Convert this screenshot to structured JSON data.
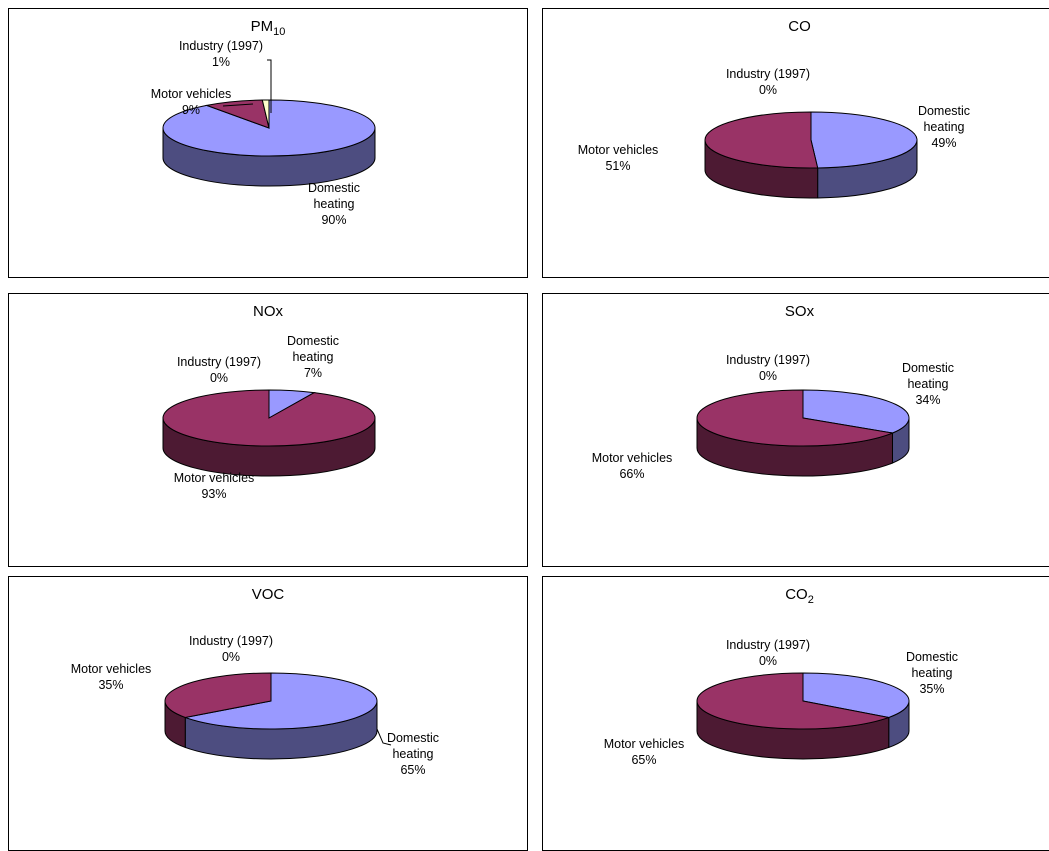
{
  "colors": {
    "domestic_heating": "#9999ff",
    "domestic_heating_side": "#4d4d80",
    "motor_vehicles": "#993366",
    "motor_vehicles_side": "#4d1a33",
    "industry": "#ffffcc",
    "industry_side": "#80806a"
  },
  "chart_data": [
    {
      "type": "pie",
      "title": "PM",
      "title_subscript": "10",
      "categories": [
        "Domestic heating",
        "Motor vehicles",
        "Industry (1997)"
      ],
      "values": [
        90,
        9,
        1
      ],
      "labels": [
        {
          "lines": [
            "Domestic",
            "heating",
            "90%"
          ]
        },
        {
          "lines": [
            "Motor vehicles",
            "9%"
          ]
        },
        {
          "lines": [
            "Industry (1997)",
            "1%"
          ]
        }
      ]
    },
    {
      "type": "pie",
      "title": "CO",
      "title_subscript": "",
      "categories": [
        "Domestic heating",
        "Motor vehicles",
        "Industry (1997)"
      ],
      "values": [
        49,
        51,
        0
      ],
      "labels": [
        {
          "lines": [
            "Domestic",
            "heating",
            "49%"
          ]
        },
        {
          "lines": [
            "Motor vehicles",
            "51%"
          ]
        },
        {
          "lines": [
            "Industry (1997)",
            "0%"
          ]
        }
      ]
    },
    {
      "type": "pie",
      "title": "NOx",
      "title_subscript": "",
      "categories": [
        "Domestic heating",
        "Motor vehicles",
        "Industry (1997)"
      ],
      "values": [
        7,
        93,
        0
      ],
      "labels": [
        {
          "lines": [
            "Domestic",
            "heating",
            "7%"
          ]
        },
        {
          "lines": [
            "Motor vehicles",
            "93%"
          ]
        },
        {
          "lines": [
            "Industry (1997)",
            "0%"
          ]
        }
      ]
    },
    {
      "type": "pie",
      "title": "SOx",
      "title_subscript": "",
      "categories": [
        "Domestic heating",
        "Motor vehicles",
        "Industry (1997)"
      ],
      "values": [
        34,
        66,
        0
      ],
      "labels": [
        {
          "lines": [
            "Domestic",
            "heating",
            "34%"
          ]
        },
        {
          "lines": [
            "Motor vehicles",
            "66%"
          ]
        },
        {
          "lines": [
            "Industry (1997)",
            "0%"
          ]
        }
      ]
    },
    {
      "type": "pie",
      "title": "VOC",
      "title_subscript": "",
      "categories": [
        "Domestic heating",
        "Motor vehicles",
        "Industry (1997)"
      ],
      "values": [
        65,
        35,
        0
      ],
      "labels": [
        {
          "lines": [
            "Domestic",
            "heating",
            "65%"
          ]
        },
        {
          "lines": [
            "Motor vehicles",
            "35%"
          ]
        },
        {
          "lines": [
            "Industry (1997)",
            "0%"
          ]
        }
      ]
    },
    {
      "type": "pie",
      "title": "CO",
      "title_subscript": "2",
      "categories": [
        "Domestic heating",
        "Motor vehicles",
        "Industry (1997)"
      ],
      "values": [
        35,
        65,
        0
      ],
      "labels": [
        {
          "lines": [
            "Domestic",
            "heating",
            "35%"
          ]
        },
        {
          "lines": [
            "Motor vehicles",
            "65%"
          ]
        },
        {
          "lines": [
            "Industry (1997)",
            "0%"
          ]
        }
      ]
    }
  ]
}
